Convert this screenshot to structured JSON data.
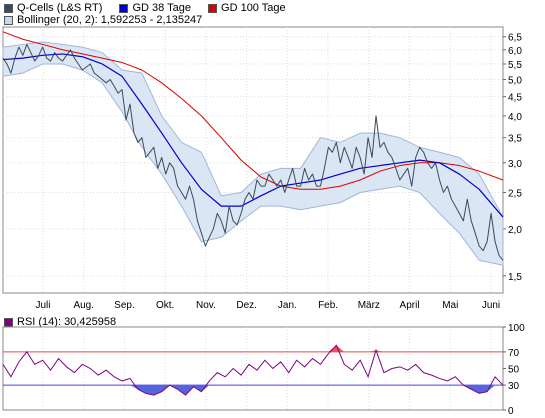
{
  "chart_data": [
    {
      "type": "line",
      "title": "",
      "legend": [
        {
          "name": "Q-Cells (L&S RT)",
          "color": "#3a4a5a"
        },
        {
          "name": "GD 38 Tage",
          "color": "#0000cc"
        },
        {
          "name": "GD 100 Tage",
          "color": "#dd0000"
        },
        {
          "name": "Bollinger (20, 2): 1,592253 - 2,135247",
          "color": "#c8d8ee"
        }
      ],
      "x_ticks": [
        "Juli",
        "Aug.",
        "Sep.",
        "Okt.",
        "Nov.",
        "Dez.",
        "Jan.",
        "Feb.",
        "März",
        "April",
        "Mai",
        "Juni"
      ],
      "y_scale": "log",
      "y_ticks": [
        "1,5",
        "2,0",
        "2,5",
        "3,0",
        "3,5",
        "4,0",
        "4,5",
        "5,0",
        "5,5",
        "6,0",
        "6,5"
      ],
      "ylim": [
        1.35,
        6.9
      ],
      "grid": true,
      "series": [
        {
          "name": "Q-Cells (L&S RT)",
          "color": "#3a4a5a",
          "x": [
            0,
            2,
            4,
            6,
            8,
            10,
            12,
            14,
            16,
            18,
            20,
            22,
            24,
            26,
            28,
            30,
            32,
            34,
            36,
            38,
            40,
            42,
            44,
            46,
            48,
            50,
            52,
            54,
            56,
            58,
            60,
            62,
            64,
            66,
            68,
            70,
            72,
            74,
            76,
            78,
            80,
            82,
            84,
            86,
            88,
            90,
            92,
            94,
            96,
            98,
            100,
            102,
            104,
            106,
            108,
            110,
            112,
            114,
            116,
            118,
            120,
            122,
            124,
            126,
            128,
            130,
            132,
            134,
            136,
            138,
            140,
            142,
            144,
            146,
            148,
            150,
            152,
            154,
            156,
            158,
            160,
            162,
            164,
            166,
            168,
            170,
            172,
            174,
            176,
            178,
            180,
            182,
            184,
            186,
            188,
            190,
            192,
            194,
            196,
            198,
            200,
            202,
            204,
            206,
            208,
            210,
            212,
            214,
            216,
            218,
            220,
            222,
            224,
            226,
            228,
            230,
            232,
            234,
            236,
            238,
            240,
            242,
            244,
            246,
            248,
            250,
            252
          ],
          "values": [
            5.7,
            5.5,
            5.2,
            5.7,
            6.1,
            5.8,
            6.2,
            5.9,
            5.6,
            5.8,
            6.1,
            5.7,
            5.6,
            5.9,
            5.7,
            5.6,
            5.8,
            6.0,
            5.7,
            5.5,
            5.3,
            5.4,
            5.5,
            5.2,
            5.1,
            5.0,
            4.9,
            5.0,
            4.8,
            4.6,
            4.7,
            3.9,
            4.3,
            3.6,
            3.4,
            3.5,
            3.1,
            3.2,
            3.3,
            2.9,
            3.1,
            2.8,
            3.0,
            2.9,
            2.6,
            2.5,
            2.4,
            2.6,
            2.4,
            2.1,
            1.95,
            1.8,
            1.9,
            2.0,
            2.2,
            2.1,
            1.95,
            2.3,
            2.1,
            2.05,
            2.2,
            2.4,
            2.5,
            2.4,
            2.7,
            2.6,
            2.6,
            2.8,
            2.7,
            2.6,
            2.7,
            2.5,
            2.7,
            2.9,
            2.6,
            2.6,
            2.9,
            2.7,
            2.8,
            2.6,
            2.6,
            2.9,
            3.3,
            3.2,
            3.4,
            3.0,
            3.3,
            3.1,
            2.9,
            3.3,
            3.1,
            2.8,
            3.5,
            3.1,
            4.0,
            3.3,
            3.4,
            3.2,
            3.1,
            2.9,
            2.7,
            2.8,
            2.9,
            2.6,
            3.1,
            3.3,
            3.2,
            3.0,
            2.9,
            3.0,
            2.7,
            2.5,
            2.6,
            2.4,
            2.3,
            2.2,
            2.1,
            2.4,
            2.1,
            1.95,
            1.8,
            1.75,
            1.85,
            2.2,
            1.85,
            1.7,
            1.65
          ]
        },
        {
          "name": "GD 38 Tage",
          "color": "#0000cc",
          "x": [
            0,
            10,
            20,
            30,
            40,
            50,
            60,
            70,
            80,
            90,
            100,
            110,
            120,
            130,
            140,
            150,
            160,
            170,
            180,
            190,
            200,
            210,
            220,
            230,
            240,
            252
          ],
          "values": [
            5.65,
            5.7,
            5.8,
            5.85,
            5.75,
            5.5,
            5.1,
            4.3,
            3.6,
            3.0,
            2.55,
            2.3,
            2.3,
            2.45,
            2.6,
            2.65,
            2.7,
            2.8,
            2.9,
            2.95,
            3.0,
            3.05,
            3.0,
            2.8,
            2.55,
            2.15
          ]
        },
        {
          "name": "GD 100 Tage",
          "color": "#dd0000",
          "x": [
            0,
            10,
            20,
            30,
            40,
            50,
            60,
            70,
            80,
            90,
            100,
            110,
            120,
            130,
            140,
            150,
            160,
            170,
            180,
            190,
            200,
            210,
            220,
            230,
            240,
            252
          ],
          "values": [
            6.7,
            6.4,
            6.2,
            6.0,
            5.85,
            5.7,
            5.55,
            5.3,
            4.9,
            4.45,
            4.0,
            3.5,
            3.05,
            2.75,
            2.6,
            2.55,
            2.55,
            2.6,
            2.7,
            2.85,
            2.95,
            3.0,
            3.0,
            2.95,
            2.85,
            2.7
          ]
        },
        {
          "name": "Bollinger upper",
          "x": [
            0,
            10,
            20,
            30,
            40,
            50,
            60,
            70,
            80,
            90,
            100,
            110,
            120,
            130,
            140,
            150,
            160,
            170,
            180,
            190,
            200,
            210,
            220,
            230,
            240,
            252
          ],
          "values": [
            6.1,
            6.2,
            6.3,
            6.2,
            6.1,
            5.9,
            5.3,
            5.2,
            4.0,
            3.4,
            3.2,
            2.45,
            2.5,
            2.8,
            2.9,
            2.9,
            3.5,
            3.4,
            3.6,
            3.6,
            3.5,
            3.3,
            3.2,
            3.1,
            2.8,
            2.15
          ]
        },
        {
          "name": "Bollinger lower",
          "x": [
            0,
            10,
            20,
            30,
            40,
            50,
            60,
            70,
            80,
            90,
            100,
            110,
            120,
            130,
            140,
            150,
            160,
            170,
            180,
            190,
            200,
            210,
            220,
            230,
            240,
            252
          ],
          "values": [
            5.1,
            5.2,
            5.5,
            5.5,
            5.3,
            4.9,
            4.1,
            3.3,
            2.8,
            2.3,
            1.85,
            1.9,
            2.1,
            2.3,
            2.3,
            2.25,
            2.3,
            2.35,
            2.5,
            2.55,
            2.6,
            2.5,
            2.2,
            1.95,
            1.65,
            1.6
          ]
        }
      ]
    },
    {
      "type": "line",
      "title": "RSI (14): 30,425958",
      "legend": [
        {
          "name": "RSI (14): 30,425958",
          "color": "#800080"
        }
      ],
      "y_ticks": [
        "0",
        "30",
        "50",
        "70",
        "100"
      ],
      "ylim": [
        0,
        100
      ],
      "reference_lines": [
        {
          "value": 70,
          "color": "#ee4444"
        },
        {
          "value": 30,
          "color": "#4444ee"
        }
      ],
      "x": [
        0,
        4,
        8,
        12,
        16,
        20,
        24,
        28,
        32,
        36,
        40,
        44,
        48,
        52,
        56,
        60,
        64,
        68,
        72,
        76,
        80,
        84,
        88,
        92,
        96,
        100,
        104,
        108,
        112,
        116,
        120,
        124,
        128,
        132,
        136,
        140,
        144,
        148,
        152,
        156,
        160,
        164,
        168,
        172,
        176,
        180,
        184,
        188,
        192,
        196,
        200,
        204,
        208,
        212,
        216,
        220,
        224,
        228,
        232,
        236,
        240,
        244,
        248,
        252
      ],
      "values": [
        55,
        40,
        58,
        70,
        55,
        60,
        48,
        62,
        52,
        45,
        55,
        50,
        42,
        48,
        40,
        35,
        38,
        25,
        20,
        18,
        22,
        30,
        25,
        18,
        28,
        22,
        35,
        45,
        40,
        50,
        42,
        55,
        48,
        60,
        50,
        58,
        45,
        60,
        52,
        62,
        55,
        68,
        78,
        55,
        48,
        60,
        40,
        72,
        45,
        50,
        52,
        48,
        55,
        45,
        42,
        38,
        35,
        40,
        30,
        25,
        20,
        22,
        40,
        30
      ]
    }
  ]
}
